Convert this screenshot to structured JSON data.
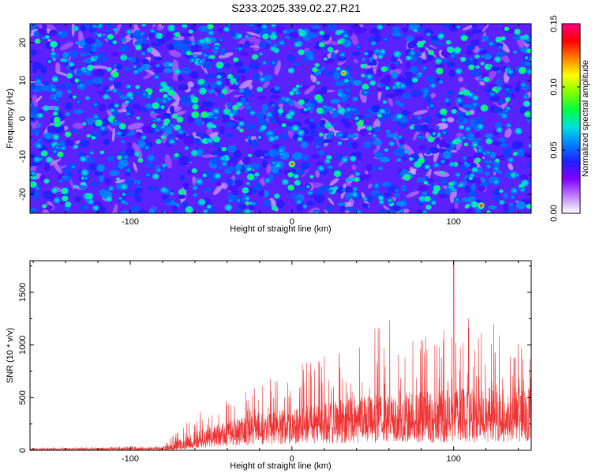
{
  "title": "S233.2025.339.02.27.R21",
  "chart_data": [
    {
      "type": "heatmap",
      "name": "spectrogram",
      "xlabel": "Height of straight line (km)",
      "ylabel": "Frequency (Hz)",
      "xlim": [
        -162,
        148
      ],
      "ylim": [
        -25,
        25
      ],
      "xticks": [
        -100,
        0,
        100
      ],
      "yticks": [
        -20,
        -10,
        0,
        10,
        20
      ],
      "colorbar": {
        "label": "Normalized spectral amplitude",
        "range": [
          0.0,
          0.15
        ],
        "ticks": [
          "0.00",
          "0.05",
          "0.10",
          "0.15"
        ],
        "colormap": [
          "#ffffff",
          "#c080ff",
          "#8000ff",
          "#2020ff",
          "#0080ff",
          "#00e0e0",
          "#00ff40",
          "#80ff00",
          "#ffff00",
          "#ff8000",
          "#ff0000",
          "#ff0080"
        ]
      },
      "values_note": "dense noise field, mostly 0.02-0.05, scattered peaks to ~0.15",
      "peaks": [
        {
          "x": 0,
          "y": -12,
          "v": 0.14
        },
        {
          "x": 32,
          "y": 12,
          "v": 0.13
        },
        {
          "x": 117,
          "y": -23,
          "v": 0.15
        },
        {
          "x": -133,
          "y": 10,
          "v": 0.09
        },
        {
          "x": -80,
          "y": 3,
          "v": 0.08
        },
        {
          "x": 40,
          "y": 0,
          "v": 0.08
        },
        {
          "x": 59,
          "y": 8,
          "v": 0.08
        },
        {
          "x": -54,
          "y": -15,
          "v": 0.08
        },
        {
          "x": -104,
          "y": -20,
          "v": 0.07
        },
        {
          "x": 145,
          "y": 16,
          "v": 0.07
        },
        {
          "x": -150,
          "y": 15,
          "v": 0.07
        },
        {
          "x": 88,
          "y": -4,
          "v": 0.07
        },
        {
          "x": -20,
          "y": -5,
          "v": 0.07
        },
        {
          "x": 10,
          "y": -18,
          "v": 0.07
        }
      ]
    },
    {
      "type": "line",
      "name": "snr",
      "xlabel": "Height of straight line (km)",
      "ylabel": "SNR (10 * v/v)",
      "xlim": [
        -162,
        148
      ],
      "ylim": [
        0,
        1800
      ],
      "xticks": [
        -100,
        0,
        100
      ],
      "yticks": [
        0,
        500,
        1000,
        1500
      ],
      "color": "#ee3333",
      "envelope": {
        "x": [
          -162,
          -80,
          -70,
          -60,
          -50,
          -40,
          -30,
          -20,
          -10,
          0,
          10,
          20,
          30,
          40,
          50,
          60,
          70,
          80,
          90,
          100,
          110,
          120,
          130,
          140,
          148
        ],
        "baseline": [
          8,
          10,
          20,
          60,
          100,
          130,
          150,
          160,
          180,
          190,
          200,
          210,
          220,
          230,
          240,
          240,
          240,
          240,
          250,
          250,
          250,
          250,
          250,
          250,
          260
        ],
        "typical": [
          15,
          25,
          80,
          150,
          200,
          240,
          280,
          300,
          330,
          350,
          380,
          400,
          420,
          440,
          460,
          470,
          480,
          490,
          500,
          510,
          520,
          520,
          520,
          520,
          530
        ],
        "peak": [
          25,
          40,
          200,
          350,
          400,
          500,
          550,
          650,
          700,
          850,
          850,
          900,
          950,
          1000,
          1150,
          1250,
          1100,
          1150,
          1200,
          1300,
          1350,
          1300,
          1150,
          1050,
          1000
        ]
      },
      "max_point": {
        "x": 100,
        "y": 1800
      }
    }
  ]
}
